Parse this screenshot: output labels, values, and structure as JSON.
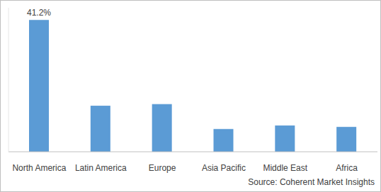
{
  "chart_data": {
    "type": "bar",
    "categories": [
      "North America",
      "Latin America",
      "Europe",
      "Asia Pacific",
      "Middle East",
      "Africa"
    ],
    "values": [
      41.2,
      14.4,
      14.9,
      7.1,
      8.2,
      7.8
    ],
    "value_labels": [
      "41.2%",
      null,
      null,
      null,
      null,
      null
    ],
    "data_labels": true,
    "color": "#5b9bd5",
    "ylim": [
      0,
      45
    ],
    "yticks": [],
    "tick_labels": "x",
    "grid": false,
    "annotations": [
      "Source: Coherent Market Insights"
    ]
  }
}
